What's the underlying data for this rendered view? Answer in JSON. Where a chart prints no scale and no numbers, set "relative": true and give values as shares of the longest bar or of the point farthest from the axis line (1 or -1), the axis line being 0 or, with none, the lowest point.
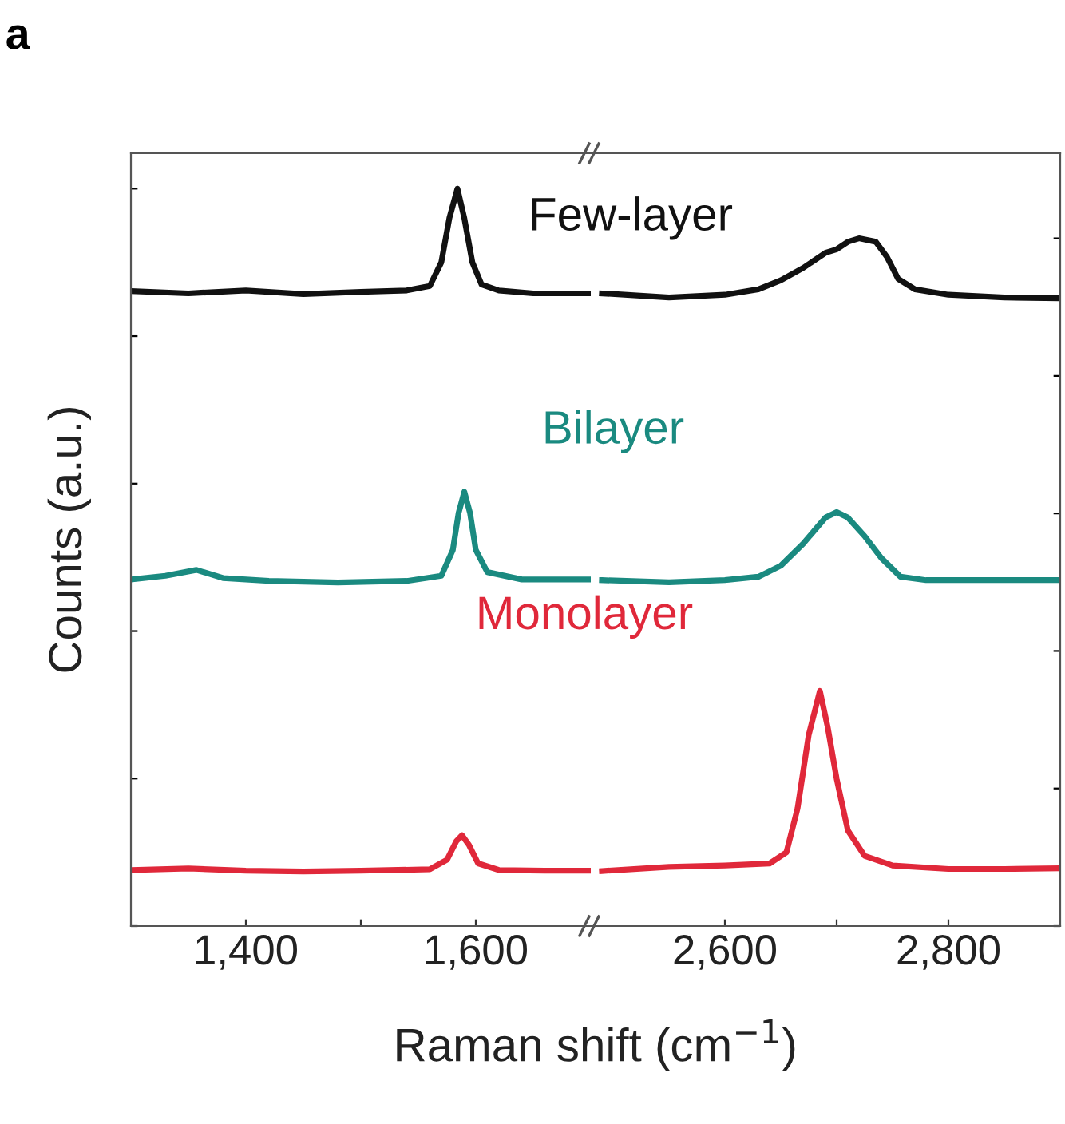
{
  "chart_data": [
    {
      "type": "line",
      "relative": true,
      "ylabel": "Counts (a.u.)",
      "xlabel": "Raman shift (cm$^{−1}$)",
      "annotations": [
        "a"
      ],
      "xlim": [
        1300,
        1700
      ],
      "xticks": [
        {
          "value": 1400,
          "label": "1,400"
        },
        {
          "value": 1500,
          "label": null
        },
        {
          "value": 1600,
          "label": "1,600"
        }
      ],
      "tick_labels": "x",
      "legend": false,
      "grid": false,
      "series": [
        {
          "name": "Few-layer",
          "color": "#111111",
          "x": [
            1300,
            1350,
            1400,
            1450,
            1500,
            1540,
            1560,
            1570,
            1577,
            1584,
            1590,
            1597,
            1605,
            1620,
            1650,
            1700
          ],
          "values": [
            0.861,
            0.858,
            0.862,
            0.857,
            0.86,
            0.862,
            0.868,
            0.9,
            0.96,
            1.0,
            0.96,
            0.9,
            0.87,
            0.862,
            0.858,
            0.858
          ]
        },
        {
          "name": "Bilayer",
          "color": "#1a8a80",
          "x": [
            1300,
            1330,
            1357,
            1380,
            1420,
            1480,
            1540,
            1570,
            1580,
            1585,
            1590,
            1595,
            1600,
            1610,
            1640,
            1700
          ],
          "values": [
            0.47,
            0.475,
            0.483,
            0.472,
            0.468,
            0.466,
            0.468,
            0.475,
            0.51,
            0.56,
            0.589,
            0.56,
            0.51,
            0.48,
            0.47,
            0.47
          ]
        },
        {
          "name": "Monolayer",
          "color": "#e0283a",
          "x": [
            1300,
            1350,
            1400,
            1450,
            1500,
            1560,
            1575,
            1583,
            1588,
            1594,
            1602,
            1620,
            1660,
            1700
          ],
          "values": [
            0.076,
            0.078,
            0.075,
            0.074,
            0.075,
            0.077,
            0.09,
            0.115,
            0.123,
            0.11,
            0.085,
            0.076,
            0.075,
            0.075
          ]
        }
      ]
    },
    {
      "type": "line",
      "relative": true,
      "xlim": [
        2480,
        2900
      ],
      "xticks": [
        {
          "value": 2600,
          "label": "2,600"
        },
        {
          "value": 2700,
          "label": null
        },
        {
          "value": 2800,
          "label": "2,800"
        }
      ],
      "tick_labels": "x",
      "legend": false,
      "grid": false,
      "series": [
        {
          "color": "#111111",
          "x": [
            2490,
            2550,
            2600,
            2630,
            2650,
            2670,
            2690,
            2700,
            2710,
            2720,
            2735,
            2745,
            2755,
            2770,
            2800,
            2850,
            2900
          ],
          "values": [
            0.92,
            0.914,
            0.918,
            0.926,
            0.939,
            0.957,
            0.979,
            0.984,
            0.995,
            1.0,
            0.995,
            0.973,
            0.941,
            0.926,
            0.918,
            0.914,
            0.913
          ]
        },
        {
          "color": "#1a8a80",
          "x": [
            2490,
            2550,
            2600,
            2630,
            2650,
            2670,
            2690,
            2700,
            2710,
            2725,
            2740,
            2757,
            2780,
            2850,
            2900
          ],
          "values": [
            0.503,
            0.5,
            0.503,
            0.508,
            0.524,
            0.556,
            0.594,
            0.602,
            0.594,
            0.567,
            0.535,
            0.508,
            0.503,
            0.503,
            0.503
          ]
        },
        {
          "color": "#e0283a",
          "x": [
            2490,
            2550,
            2600,
            2640,
            2655,
            2665,
            2675,
            2685,
            2692,
            2700,
            2710,
            2725,
            2750,
            2800,
            2850,
            2900
          ],
          "values": [
            0.08,
            0.086,
            0.088,
            0.091,
            0.107,
            0.171,
            0.278,
            0.342,
            0.289,
            0.214,
            0.139,
            0.102,
            0.088,
            0.083,
            0.083,
            0.084
          ]
        }
      ]
    }
  ]
}
